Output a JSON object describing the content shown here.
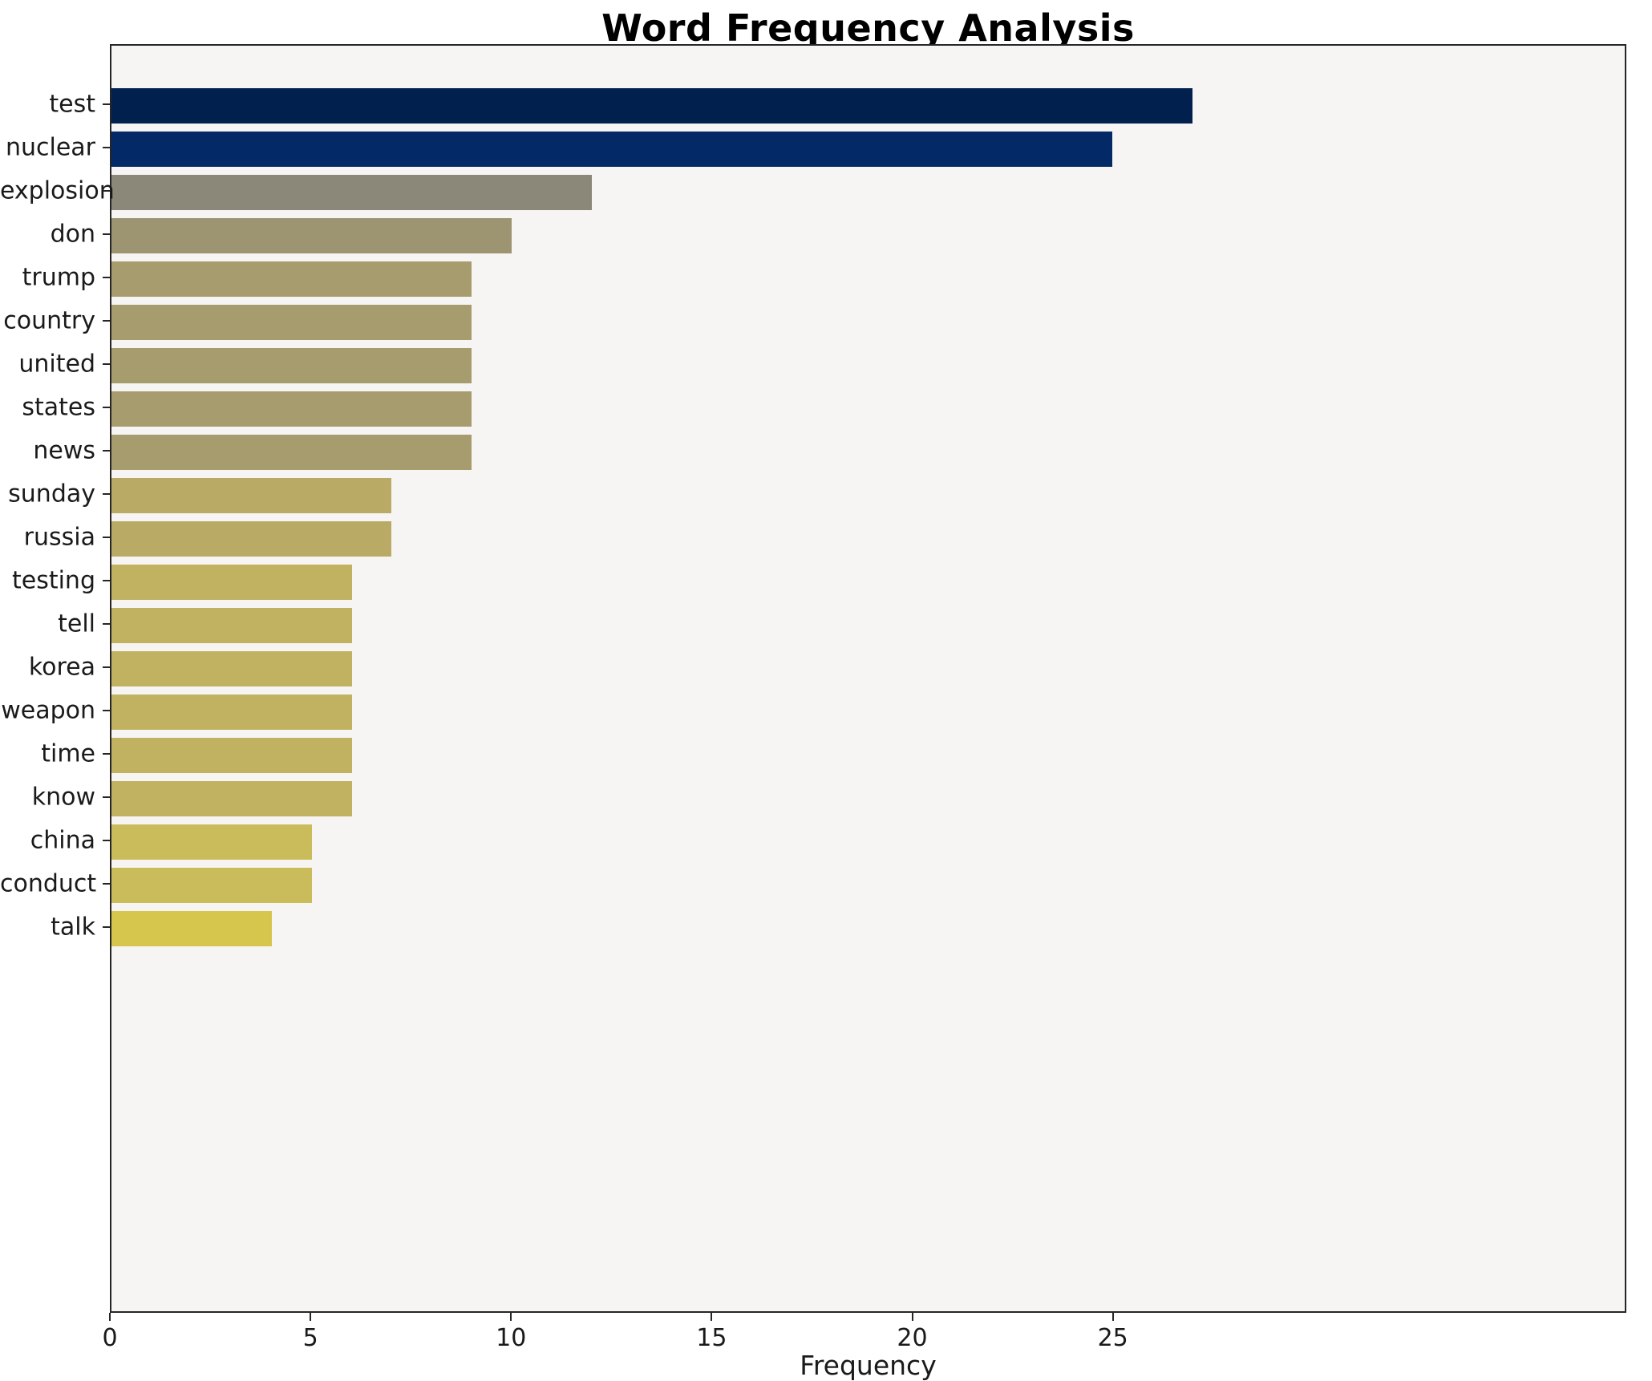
{
  "chart_data": {
    "type": "bar",
    "orientation": "horizontal",
    "title": "Word Frequency Analysis",
    "xlabel": "Frequency",
    "ylabel": "",
    "xlim": [
      0,
      37.8
    ],
    "x_ticks": [
      0,
      5,
      10,
      15,
      20,
      25
    ],
    "grid": false,
    "legend": "none",
    "plot_background": "#f6f5f3",
    "categories": [
      "test",
      "nuclear",
      "explosion",
      "don",
      "trump",
      "country",
      "united",
      "states",
      "news",
      "sunday",
      "russia",
      "testing",
      "tell",
      "korea",
      "weapon",
      "time",
      "know",
      "china",
      "conduct",
      "talk"
    ],
    "values": [
      27,
      25,
      12,
      10,
      9,
      9,
      9,
      9,
      9,
      7,
      7,
      6,
      6,
      6,
      6,
      6,
      6,
      5,
      5,
      4
    ],
    "bar_colors": [
      "#01204e",
      "#032a66",
      "#8b8779",
      "#9d9471",
      "#a69c6d",
      "#a69c6d",
      "#a69c6d",
      "#a69c6d",
      "#a69c6d",
      "#b9ab66",
      "#b9ab66",
      "#c1b261",
      "#c1b261",
      "#c1b261",
      "#c1b261",
      "#c1b261",
      "#c1b261",
      "#cbbc5b",
      "#cbbc5b",
      "#d6c64e"
    ]
  }
}
